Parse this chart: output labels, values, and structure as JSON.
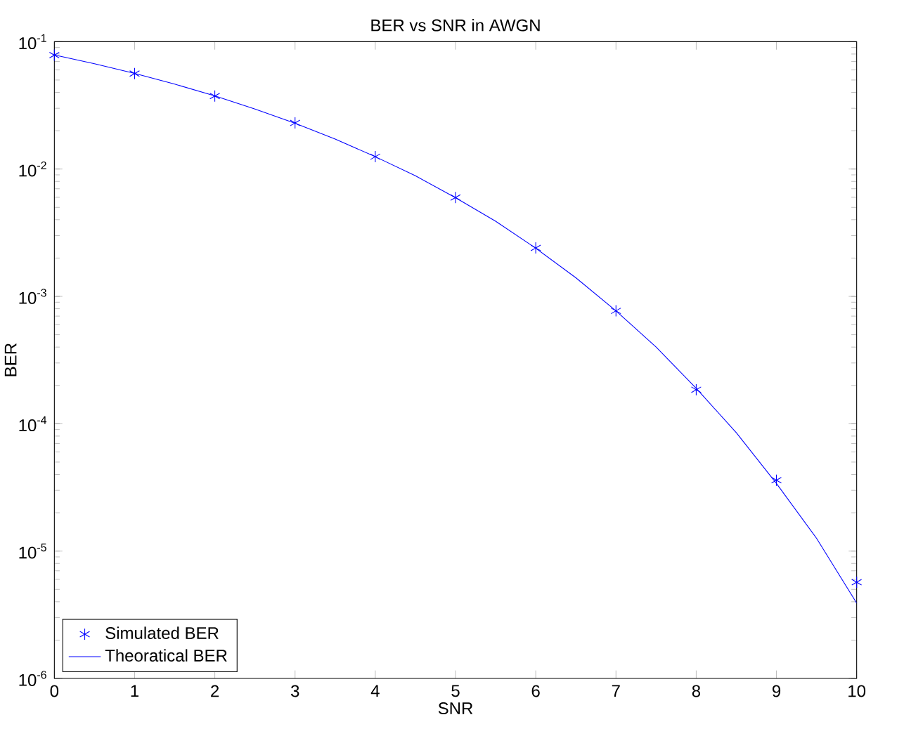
{
  "chart_data": {
    "type": "line",
    "title": "BER vs SNR in AWGN",
    "xlabel": "SNR",
    "ylabel": "BER",
    "log": "y",
    "xlim": [
      0,
      10
    ],
    "ylim": [
      1e-06,
      0.1
    ],
    "xticks": [
      0,
      1,
      2,
      3,
      4,
      5,
      6,
      7,
      8,
      9,
      10
    ],
    "yticks": [
      {
        "value": 1e-06,
        "label": "10$^{-6}$"
      },
      {
        "value": 1e-05,
        "label": "10$^{-5}$"
      },
      {
        "value": 0.0001,
        "label": "10$^{-4}$"
      },
      {
        "value": 0.001,
        "label": "10$^{-3}$"
      },
      {
        "value": 0.01,
        "label": "10$^{-2}$"
      },
      {
        "value": 0.1,
        "label": "10$^{-1}$"
      }
    ],
    "legend": "bottom left",
    "grid": false,
    "series": [
      {
        "name": "Simulated BER",
        "type": "scatter",
        "marker": "cross",
        "color": "#0000ff",
        "x": [
          0,
          1,
          2,
          3,
          4,
          5,
          6,
          7,
          8,
          9,
          10
        ],
        "values": [
          0.0785,
          0.0562,
          0.0374,
          0.023,
          0.0125,
          0.00597,
          0.0024,
          0.00077,
          0.000185,
          3.6e-05,
          5.7e-06
        ]
      },
      {
        "name": "Theoratical BER",
        "type": "line",
        "line_style": "solid",
        "color": "#0000ff",
        "x": [
          0,
          0.5,
          1,
          1.5,
          2,
          2.5,
          3,
          3.5,
          4,
          4.5,
          5,
          5.5,
          6,
          6.5,
          7,
          7.5,
          8,
          8.5,
          9,
          9.5,
          10
        ],
        "values": [
          0.0786,
          0.0671,
          0.0563,
          0.0464,
          0.0375,
          0.0296,
          0.0229,
          0.0172,
          0.0125,
          0.00885,
          0.00595,
          0.00389,
          0.00239,
          0.0014,
          0.00077,
          0.0004,
          0.00019,
          8.5e-05,
          3.4e-05,
          1.26e-05,
          3.9e-06
        ]
      }
    ]
  }
}
